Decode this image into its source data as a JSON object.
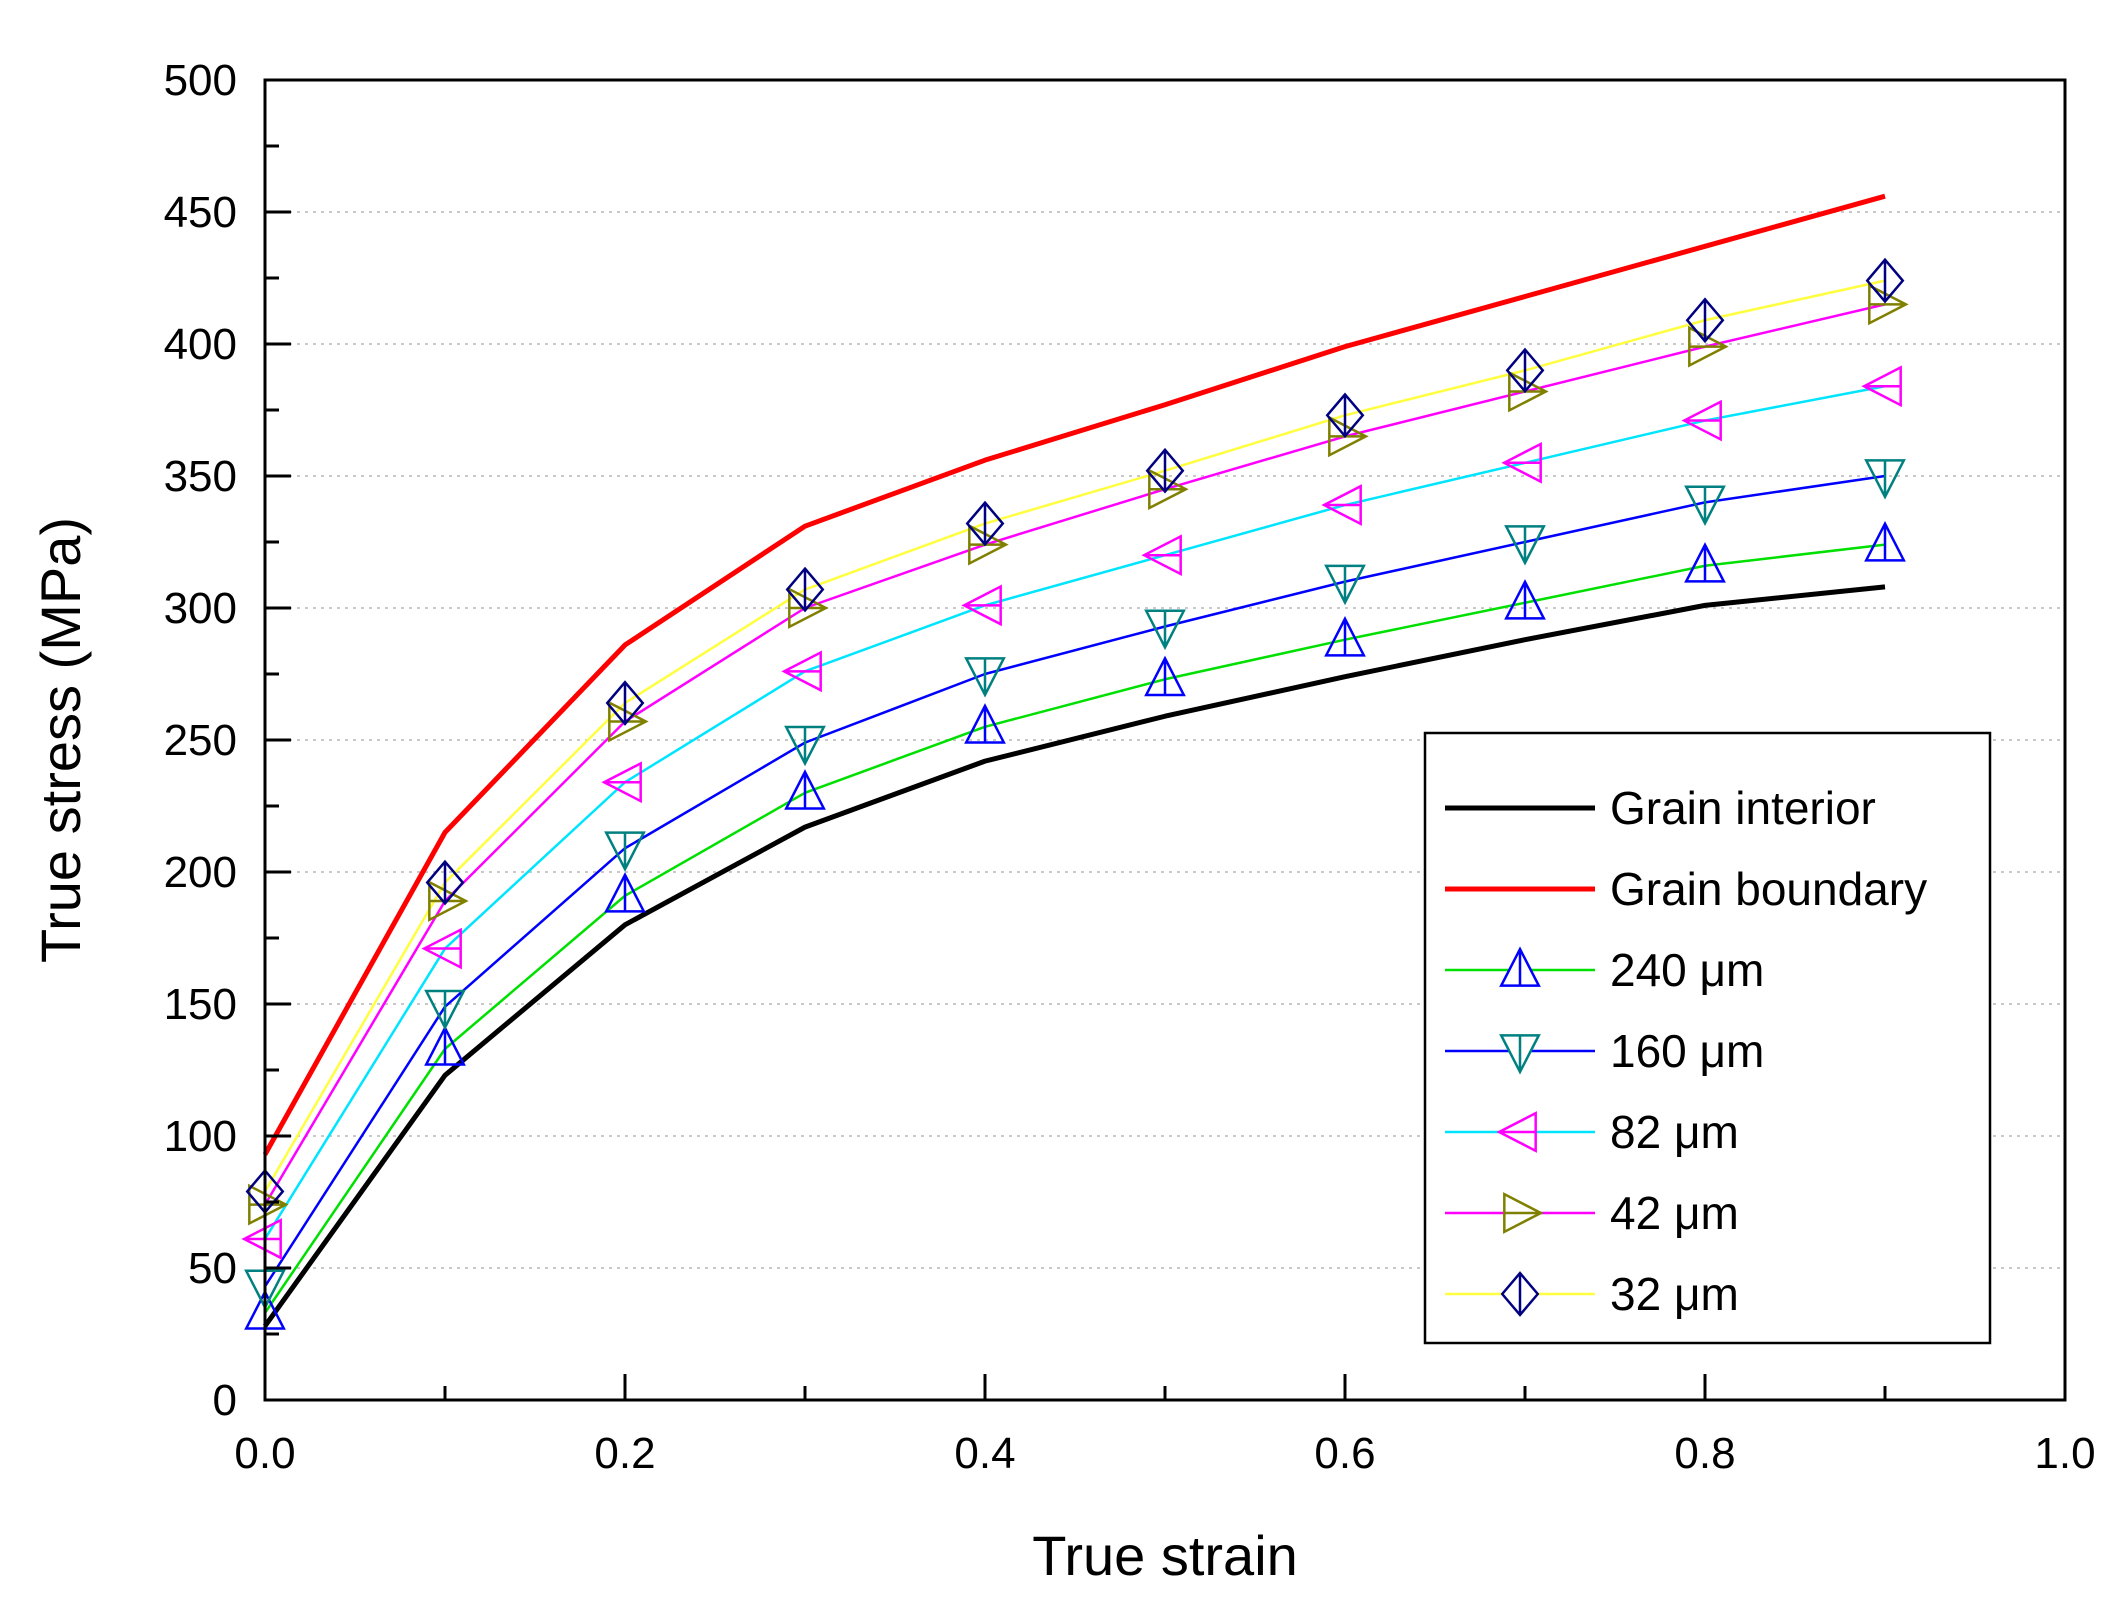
{
  "chart_data": {
    "type": "line",
    "title": "",
    "xlabel": "True strain",
    "ylabel": "True stress (MPa)",
    "xlim": [
      0.0,
      1.0
    ],
    "ylim": [
      0,
      500
    ],
    "xticks": [
      0.0,
      0.2,
      0.4,
      0.6,
      0.8,
      1.0
    ],
    "xtick_labels": [
      "0.0",
      "0.2",
      "0.4",
      "0.6",
      "0.8",
      "1.0"
    ],
    "yticks": [
      0,
      50,
      100,
      150,
      200,
      250,
      300,
      350,
      400,
      450,
      500
    ],
    "ytick_labels": [
      "0",
      "50",
      "100",
      "150",
      "200",
      "250",
      "300",
      "350",
      "400",
      "450",
      "500"
    ],
    "grid": "horizontal dotted",
    "legend_position": "bottom-right",
    "x": [
      0.0,
      0.1,
      0.2,
      0.3,
      0.4,
      0.5,
      0.6,
      0.7,
      0.8,
      0.9
    ],
    "series": [
      {
        "name": "Grain interior",
        "line_color": "#000000",
        "marker": "none",
        "marker_color": "",
        "values": [
          28,
          123,
          180,
          217,
          242,
          259,
          274,
          288,
          301,
          308
        ]
      },
      {
        "name": "Grain boundary",
        "line_color": "#ff0000",
        "marker": "none",
        "marker_color": "",
        "values": [
          93,
          215,
          286,
          331,
          356,
          377,
          399,
          418,
          437,
          456
        ]
      },
      {
        "name": "240 μm",
        "line_color": "#00e000",
        "marker": "triangle-up",
        "marker_color": "#0000ff",
        "values": [
          33,
          133,
          191,
          230,
          255,
          273,
          288,
          302,
          316,
          324
        ]
      },
      {
        "name": "160 μm",
        "line_color": "#0000ff",
        "marker": "triangle-down",
        "marker_color": "#008080",
        "values": [
          43,
          149,
          209,
          249,
          275,
          293,
          310,
          325,
          340,
          350
        ]
      },
      {
        "name": "82 μm",
        "line_color": "#00e5ff",
        "marker": "triangle-left",
        "marker_color": "#ff00ff",
        "values": [
          61,
          171,
          234,
          276,
          301,
          320,
          339,
          355,
          371,
          384
        ]
      },
      {
        "name": "42 μm",
        "line_color": "#ff00ff",
        "marker": "triangle-right",
        "marker_color": "#808000",
        "values": [
          74,
          189,
          257,
          300,
          324,
          345,
          365,
          382,
          399,
          415
        ]
      },
      {
        "name": "32 μm",
        "line_color": "#ffff40",
        "marker": "diamond",
        "marker_color": "#000080",
        "values": [
          79,
          196,
          264,
          307,
          332,
          352,
          373,
          390,
          409,
          424
        ]
      }
    ]
  }
}
